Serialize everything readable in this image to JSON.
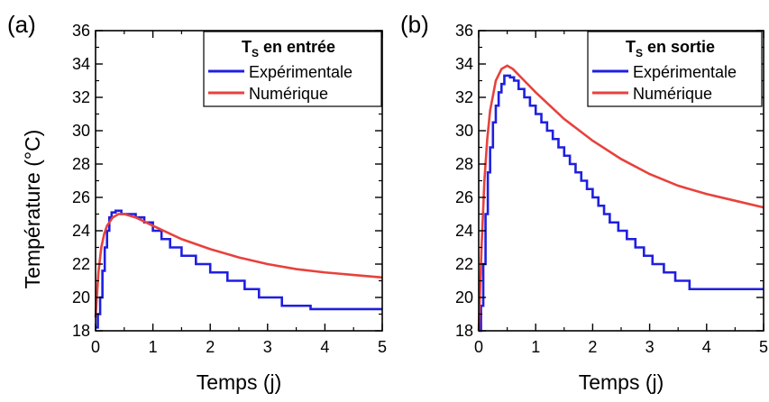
{
  "chart_data": [
    {
      "type": "line",
      "panel_label": "(a)",
      "xlabel": "Temps (j)",
      "ylabel": "Température (°C)",
      "xlim": [
        0,
        5
      ],
      "ylim": [
        18,
        36
      ],
      "xticks": [
        0,
        1,
        2,
        3,
        4,
        5
      ],
      "yticks": [
        18,
        20,
        22,
        24,
        26,
        28,
        30,
        32,
        34,
        36
      ],
      "grid": false,
      "legend_position": "top-right",
      "legend_title": "T",
      "legend_title_sub": "S",
      "legend_title_rest": " en entrée",
      "series": [
        {
          "name": "Expérimentale",
          "color": "#1f1fe0",
          "step": true,
          "points": [
            [
              0,
              18.2
            ],
            [
              0.04,
              19.0
            ],
            [
              0.08,
              20.0
            ],
            [
              0.12,
              21.6
            ],
            [
              0.16,
              23.0
            ],
            [
              0.2,
              24.0
            ],
            [
              0.24,
              24.8
            ],
            [
              0.28,
              25.1
            ],
            [
              0.35,
              25.2
            ],
            [
              0.45,
              25.0
            ],
            [
              0.7,
              24.8
            ],
            [
              0.85,
              24.5
            ],
            [
              1.0,
              24.0
            ],
            [
              1.15,
              23.5
            ],
            [
              1.3,
              23.0
            ],
            [
              1.5,
              22.5
            ],
            [
              1.75,
              22.0
            ],
            [
              2.0,
              21.5
            ],
            [
              2.3,
              21.0
            ],
            [
              2.6,
              20.5
            ],
            [
              2.85,
              20.0
            ],
            [
              3.25,
              19.5
            ],
            [
              3.75,
              19.3
            ],
            [
              5.0,
              19.3
            ]
          ]
        },
        {
          "name": "Numérique",
          "color": "#e8413c",
          "step": false,
          "points": [
            [
              0,
              18.8
            ],
            [
              0.05,
              21.5
            ],
            [
              0.1,
              23.0
            ],
            [
              0.15,
              23.8
            ],
            [
              0.2,
              24.3
            ],
            [
              0.3,
              24.8
            ],
            [
              0.4,
              25.0
            ],
            [
              0.5,
              25.0
            ],
            [
              0.7,
              24.8
            ],
            [
              1.0,
              24.3
            ],
            [
              1.5,
              23.5
            ],
            [
              2.0,
              22.9
            ],
            [
              2.5,
              22.4
            ],
            [
              3.0,
              22.0
            ],
            [
              3.5,
              21.7
            ],
            [
              4.0,
              21.5
            ],
            [
              4.5,
              21.35
            ],
            [
              5.0,
              21.2
            ]
          ]
        }
      ]
    },
    {
      "type": "line",
      "panel_label": "(b)",
      "xlabel": "Temps (j)",
      "ylabel": "",
      "xlim": [
        0,
        5
      ],
      "ylim": [
        18,
        36
      ],
      "xticks": [
        0,
        1,
        2,
        3,
        4,
        5
      ],
      "yticks": [
        18,
        20,
        22,
        24,
        26,
        28,
        30,
        32,
        34,
        36
      ],
      "grid": false,
      "legend_position": "top-right",
      "legend_title": "T",
      "legend_title_sub": "S",
      "legend_title_rest": " en sortie",
      "series": [
        {
          "name": "Expérimentale",
          "color": "#1f1fe0",
          "step": true,
          "points": [
            [
              0,
              18.0
            ],
            [
              0.04,
              19.5
            ],
            [
              0.08,
              22.0
            ],
            [
              0.12,
              25.0
            ],
            [
              0.16,
              27.5
            ],
            [
              0.2,
              29.0
            ],
            [
              0.25,
              30.5
            ],
            [
              0.3,
              31.5
            ],
            [
              0.35,
              32.3
            ],
            [
              0.4,
              32.8
            ],
            [
              0.45,
              33.3
            ],
            [
              0.55,
              33.2
            ],
            [
              0.62,
              33.0
            ],
            [
              0.7,
              32.5
            ],
            [
              0.8,
              32.0
            ],
            [
              0.9,
              31.5
            ],
            [
              1.0,
              31.0
            ],
            [
              1.1,
              30.5
            ],
            [
              1.2,
              30.0
            ],
            [
              1.3,
              29.5
            ],
            [
              1.4,
              29.0
            ],
            [
              1.5,
              28.5
            ],
            [
              1.6,
              28.0
            ],
            [
              1.7,
              27.5
            ],
            [
              1.8,
              27.0
            ],
            [
              1.9,
              26.5
            ],
            [
              2.0,
              26.0
            ],
            [
              2.1,
              25.5
            ],
            [
              2.2,
              25.0
            ],
            [
              2.3,
              24.5
            ],
            [
              2.45,
              24.0
            ],
            [
              2.6,
              23.5
            ],
            [
              2.75,
              23.0
            ],
            [
              2.9,
              22.5
            ],
            [
              3.05,
              22.0
            ],
            [
              3.25,
              21.5
            ],
            [
              3.45,
              21.0
            ],
            [
              3.7,
              20.5
            ],
            [
              5.0,
              20.5
            ]
          ]
        },
        {
          "name": "Numérique",
          "color": "#e8413c",
          "step": false,
          "points": [
            [
              0,
              18.0
            ],
            [
              0.05,
              23.0
            ],
            [
              0.1,
              27.0
            ],
            [
              0.15,
              29.5
            ],
            [
              0.2,
              31.2
            ],
            [
              0.3,
              33.0
            ],
            [
              0.4,
              33.7
            ],
            [
              0.5,
              33.9
            ],
            [
              0.6,
              33.7
            ],
            [
              0.8,
              33.0
            ],
            [
              1.0,
              32.3
            ],
            [
              1.5,
              30.7
            ],
            [
              2.0,
              29.4
            ],
            [
              2.5,
              28.3
            ],
            [
              3.0,
              27.4
            ],
            [
              3.5,
              26.7
            ],
            [
              4.0,
              26.2
            ],
            [
              4.5,
              25.8
            ],
            [
              5.0,
              25.4
            ]
          ]
        }
      ]
    }
  ]
}
